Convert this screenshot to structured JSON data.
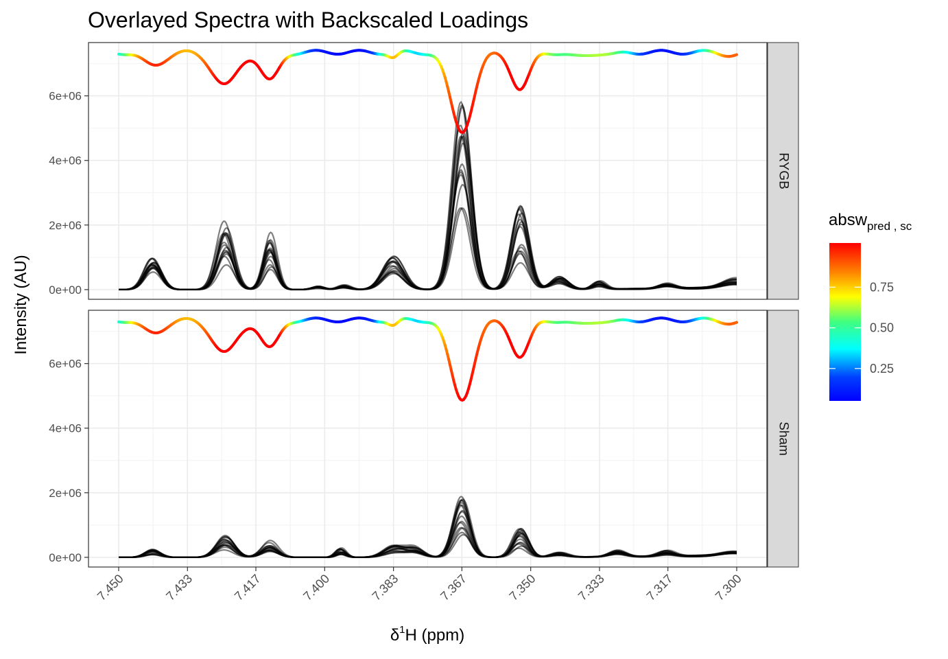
{
  "chart_data": {
    "type": "line",
    "title": "Overlayed Spectra with Backscaled Loadings",
    "xlabel_delta": "δ",
    "xlabel_sup": "1",
    "xlabel_rest": "H (ppm)",
    "ylabel": "Intensity (AU)",
    "x_reversed": true,
    "xlim": [
      7.45,
      7.3
    ],
    "ylim": [
      -300000,
      7650000
    ],
    "x_ticks": [
      "7.450",
      "7.433",
      "7.417",
      "7.400",
      "7.383",
      "7.367",
      "7.350",
      "7.333",
      "7.317",
      "7.300"
    ],
    "x_tick_values": [
      7.45,
      7.4333,
      7.4167,
      7.4,
      7.3833,
      7.3667,
      7.35,
      7.3333,
      7.3167,
      7.3
    ],
    "y_ticks": [
      "0e+00",
      "2e+06",
      "4e+06",
      "6e+06"
    ],
    "y_tick_values": [
      0,
      2000000,
      4000000,
      6000000
    ],
    "grid": true,
    "facets": [
      "RYGB",
      "Sham"
    ],
    "legend": {
      "title_main": "absw",
      "title_sub": "pred , sc",
      "placement": "right",
      "type": "colorbar",
      "range": [
        0,
        1
      ],
      "ticks": [
        "0.75",
        "0.50",
        "0.25"
      ],
      "tick_values": [
        0.75,
        0.5,
        0.25
      ],
      "colors": [
        "#0000ff",
        "#00ffff",
        "#ffff00",
        "#ff0000"
      ]
    },
    "spectrum_color": "#000000",
    "loading_baseline": 7350000,
    "loading_peaks": [
      {
        "x": 7.4417,
        "depth": 400000,
        "width": 0.0028,
        "weight": 0.9
      },
      {
        "x": 7.4242,
        "depth": 1020000,
        "width": 0.003,
        "weight": 0.95
      },
      {
        "x": 7.4133,
        "depth": 880000,
        "width": 0.0022,
        "weight": 0.95
      },
      {
        "x": 7.3833,
        "depth": 180000,
        "width": 0.0012,
        "weight": 0.7
      },
      {
        "x": 7.3667,
        "depth": 2440000,
        "width": 0.0028,
        "weight": 0.97
      },
      {
        "x": 7.3525,
        "depth": 1150000,
        "width": 0.0022,
        "weight": 0.96
      },
      {
        "x": 7.3388,
        "depth": 150000,
        "width": 0.0025,
        "weight": 0.45
      },
      {
        "x": 7.33,
        "depth": 80000,
        "width": 0.002,
        "weight": 0.4
      },
      {
        "x": 7.301,
        "depth": 80000,
        "width": 0.0025,
        "weight": 0.85
      }
    ],
    "spectra": {
      "RYGB": {
        "count": 16,
        "peaks": [
          {
            "x": 7.4417,
            "h": 650000,
            "w": 0.002
          },
          {
            "x": 7.4242,
            "h": 1500000,
            "w": 0.002
          },
          {
            "x": 7.4133,
            "h": 1300000,
            "w": 0.0016
          },
          {
            "x": 7.4017,
            "h": 70000,
            "w": 0.0015
          },
          {
            "x": 7.3953,
            "h": 100000,
            "w": 0.0015
          },
          {
            "x": 7.3833,
            "h": 750000,
            "w": 0.0025
          },
          {
            "x": 7.3667,
            "h": 4000000,
            "w": 0.0022
          },
          {
            "x": 7.3525,
            "h": 1800000,
            "w": 0.002
          },
          {
            "x": 7.343,
            "h": 300000,
            "w": 0.002
          },
          {
            "x": 7.3333,
            "h": 180000,
            "w": 0.0015
          },
          {
            "x": 7.317,
            "h": 120000,
            "w": 0.002
          },
          {
            "x": 7.3005,
            "h": 200000,
            "w": 0.003
          }
        ]
      },
      "Sham": {
        "count": 16,
        "peaks": [
          {
            "x": 7.4417,
            "h": 180000,
            "w": 0.0018
          },
          {
            "x": 7.4242,
            "h": 480000,
            "w": 0.0022
          },
          {
            "x": 7.4133,
            "h": 370000,
            "w": 0.002
          },
          {
            "x": 7.396,
            "h": 200000,
            "w": 0.0012
          },
          {
            "x": 7.383,
            "h": 250000,
            "w": 0.0025
          },
          {
            "x": 7.378,
            "h": 200000,
            "w": 0.002
          },
          {
            "x": 7.3667,
            "h": 1350000,
            "w": 0.002
          },
          {
            "x": 7.3525,
            "h": 600000,
            "w": 0.0018
          },
          {
            "x": 7.343,
            "h": 100000,
            "w": 0.002
          },
          {
            "x": 7.329,
            "h": 150000,
            "w": 0.002
          },
          {
            "x": 7.317,
            "h": 120000,
            "w": 0.002
          },
          {
            "x": 7.301,
            "h": 80000,
            "w": 0.003
          }
        ]
      }
    }
  }
}
